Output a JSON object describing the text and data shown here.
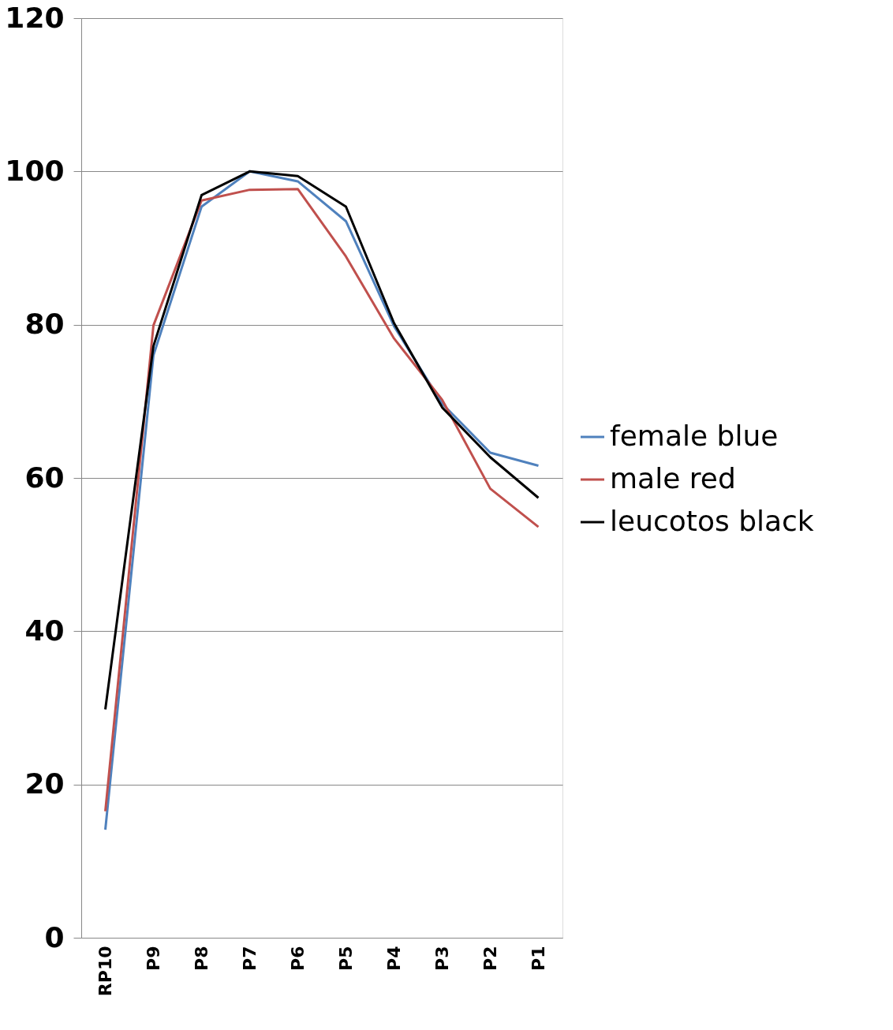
{
  "chart_data": {
    "type": "line",
    "categories": [
      "RP10",
      "P9",
      "P8",
      "P7",
      "P6",
      "P5",
      "P4",
      "P3",
      "P2",
      "P1"
    ],
    "series": [
      {
        "name": "female blue",
        "color": "#4f81bd",
        "values": [
          14.1,
          76.0,
          95.4,
          100,
          98.7,
          93.5,
          79.8,
          69.7,
          63.3,
          61.6
        ]
      },
      {
        "name": "male red",
        "color": "#c0504d",
        "values": [
          16.5,
          79.9,
          96.2,
          97.6,
          97.7,
          88.9,
          78.2,
          70.2,
          58.6,
          53.6
        ]
      },
      {
        "name": "leucotos black",
        "color": "#000000",
        "values": [
          29.8,
          77.2,
          96.9,
          100,
          99.4,
          95.4,
          80.2,
          69.2,
          62.7,
          57.4
        ]
      }
    ],
    "ylim": [
      0,
      120
    ],
    "yticks": [
      0,
      20,
      40,
      60,
      80,
      100,
      120
    ],
    "grid": "y",
    "legend": "right",
    "marker": "none",
    "line_style": "solid"
  }
}
